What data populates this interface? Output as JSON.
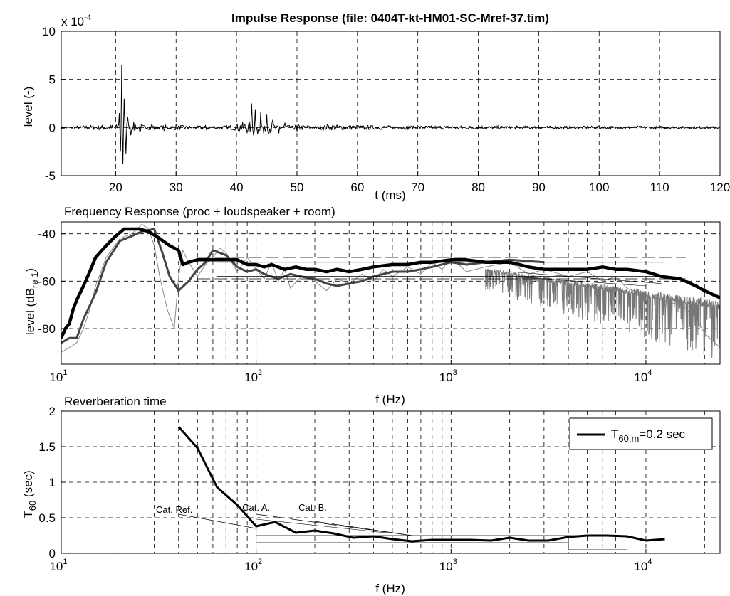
{
  "chart_data": [
    {
      "id": "impulse",
      "type": "line",
      "title": "Impulse Response (file: 0404T-kt-HM01-SC-Mref-37.tim)",
      "xlabel": "t (ms)",
      "ylabel": "level (-)",
      "y_multiplier": "x 10",
      "y_multiplier_exp": "-4",
      "xlim": [
        11,
        120
      ],
      "ylim": [
        -5,
        10
      ],
      "xticks": [
        20,
        30,
        40,
        50,
        60,
        70,
        80,
        90,
        100,
        110,
        120
      ],
      "yticks": [
        -5,
        0,
        5,
        10
      ],
      "grid": true,
      "series": [
        {
          "color": "#000000",
          "noise_floor": 0.12,
          "x": [
            11,
            20.4,
            20.6,
            20.8,
            21.0,
            21.2,
            21.4,
            21.7,
            22.0,
            22.5,
            23,
            24,
            26,
            28,
            30,
            35,
            40,
            42.5,
            42.8,
            43.1,
            43.5,
            44,
            44.5,
            45,
            46,
            47,
            48,
            50,
            55,
            60,
            70,
            80,
            90,
            100,
            110,
            120
          ],
          "y": [
            0,
            0.3,
            1.5,
            -2.5,
            6.5,
            -3.8,
            3.0,
            -2.7,
            1.1,
            -0.8,
            0.6,
            -0.5,
            0.4,
            -0.3,
            0.3,
            -0.2,
            0.3,
            2.5,
            -0.8,
            1.9,
            -0.7,
            1.6,
            -0.6,
            1.4,
            0.8,
            -0.6,
            0.5,
            -0.4,
            0.3,
            0.2,
            0.1,
            0.1,
            0.05,
            0.05,
            0.03,
            0
          ]
        }
      ]
    },
    {
      "id": "frequency",
      "type": "line",
      "title": "Frequency Response (proc + loudspeaker + room)",
      "xlabel": "f (Hz)",
      "ylabel": "level (dB",
      "ylabel_sub": "re 1",
      "ylabel_close": ")",
      "xscale": "log",
      "xlim": [
        10,
        24000
      ],
      "ylim": [
        -95,
        -35
      ],
      "xtick_base": "10",
      "xticks": [
        {
          "value": 10,
          "exp": "1"
        },
        {
          "value": 100,
          "exp": "2"
        },
        {
          "value": 1000,
          "exp": "3"
        },
        {
          "value": 10000,
          "exp": "4"
        }
      ],
      "yticks": [
        -40,
        -60,
        -80
      ],
      "grid": true,
      "series": [
        {
          "color": "#888888",
          "width": 1,
          "x": [
            10,
            11,
            12,
            13,
            14,
            15,
            17,
            20,
            23,
            26,
            28,
            30,
            32,
            35,
            38,
            40,
            42,
            45,
            50,
            55,
            60,
            65,
            70,
            80,
            90,
            100,
            110,
            120,
            130,
            140,
            150,
            170,
            200,
            230,
            260,
            300,
            350,
            400,
            450,
            500,
            600,
            700,
            800,
            900,
            1000,
            1200,
            1500,
            2000,
            2500,
            3000,
            4000,
            5000,
            6000,
            7000,
            8000,
            10000,
            12000,
            15000,
            18000,
            20000,
            24000
          ],
          "y": [
            -90,
            -88,
            -86,
            -80,
            -72,
            -62,
            -50,
            -42,
            -40,
            -36,
            -38,
            -45,
            -58,
            -72,
            -80,
            -58,
            -47,
            -52,
            -58,
            -53,
            -50,
            -46,
            -48,
            -56,
            -50,
            -55,
            -59,
            -52,
            -60,
            -55,
            -63,
            -58,
            -60,
            -64,
            -59,
            -61,
            -57,
            -60,
            -55,
            -58,
            -54,
            -57,
            -52,
            -55,
            -50,
            -56,
            -54,
            -52,
            -57,
            -55,
            -58,
            -56,
            -60,
            -58,
            -63,
            -66,
            -68,
            -70,
            -75,
            -82,
            -88
          ]
        },
        {
          "color": "#777777",
          "width": 1,
          "noise": true,
          "x": [
            1500,
            24000
          ],
          "y_center": [
            -56,
            -72
          ],
          "y_spread": [
            8,
            22
          ]
        },
        {
          "color": "#444444",
          "width": 3,
          "x": [
            10,
            11,
            12,
            13,
            15,
            17,
            20,
            23,
            26,
            30,
            33,
            36,
            40,
            45,
            50,
            55,
            60,
            70,
            80,
            90,
            100,
            110,
            130,
            150,
            170,
            200,
            230,
            260,
            300,
            350,
            400,
            500,
            600,
            700,
            800,
            1000,
            1200,
            1500,
            2000,
            3000
          ],
          "y": [
            -86,
            -84,
            -84,
            -76,
            -65,
            -52,
            -43,
            -41,
            -39,
            -38,
            -48,
            -58,
            -64,
            -60,
            -55,
            -52,
            -47,
            -49,
            -54,
            -56,
            -55,
            -57,
            -59,
            -57,
            -58,
            -59,
            -61,
            -62,
            -61,
            -60,
            -58,
            -56,
            -56,
            -55,
            -54,
            -52,
            -53,
            -52,
            -51,
            -52
          ]
        },
        {
          "color": "#000000",
          "width": 4.5,
          "x": [
            10,
            10.5,
            11,
            11.5,
            12,
            13,
            14,
            15,
            17,
            19,
            21,
            23,
            25,
            28,
            32,
            36,
            40,
            42,
            45,
            50,
            60,
            70,
            80,
            90,
            100,
            110,
            120,
            140,
            160,
            180,
            200,
            230,
            260,
            300,
            350,
            400,
            500,
            600,
            700,
            800,
            1000,
            1200,
            1500,
            2000,
            2500,
            3000,
            4000,
            5000,
            6000,
            7000,
            8000,
            10000,
            12000,
            15000,
            18000,
            20000,
            24000
          ],
          "y": [
            -84,
            -80,
            -78,
            -72,
            -68,
            -62,
            -56,
            -50,
            -45,
            -41,
            -38,
            -38,
            -38,
            -39,
            -42,
            -45,
            -47,
            -53,
            -52,
            -51,
            -51,
            -51,
            -51,
            -53,
            -53,
            -54,
            -53,
            -55,
            -54,
            -55,
            -55,
            -56,
            -55,
            -56,
            -55,
            -54,
            -53,
            -53,
            -52,
            -52,
            -51,
            -51,
            -52,
            -52,
            -54,
            -55,
            -55,
            -55,
            -54,
            -55,
            -55,
            -56,
            -58,
            -59,
            -62,
            -64,
            -67
          ]
        }
      ],
      "reference_lines": [
        {
          "style": "dash",
          "width": 0.8,
          "x": [
            50,
            16000
          ],
          "y": [
            -50,
            -50
          ]
        },
        {
          "style": "dash",
          "width": 0.8,
          "x": [
            50,
            16000
          ],
          "y": [
            -59,
            -59
          ]
        },
        {
          "style": "solid",
          "width": 0.8,
          "x": [
            63,
            12500
          ],
          "y": [
            -52,
            -52
          ]
        },
        {
          "style": "solid",
          "width": 0.8,
          "x": [
            63,
            12500
          ],
          "y": [
            -58,
            -58
          ]
        },
        {
          "style": "solid",
          "width": 0.6,
          "x": [
            2000,
            12000
          ],
          "y": [
            -56,
            -61
          ]
        },
        {
          "style": "solid",
          "width": 0.6,
          "x": [
            2000,
            10000
          ],
          "y": [
            -58,
            -62
          ]
        }
      ]
    },
    {
      "id": "reverb",
      "type": "line",
      "title": "Reverberation time",
      "xlabel": "f (Hz)",
      "ylabel": "T",
      "ylabel_sub": "60",
      "ylabel_tail": " (sec)",
      "xscale": "log",
      "xlim": [
        10,
        24000
      ],
      "ylim": [
        0,
        2
      ],
      "xtick_base": "10",
      "xticks": [
        {
          "value": 10,
          "exp": "1"
        },
        {
          "value": 100,
          "exp": "2"
        },
        {
          "value": 1000,
          "exp": "3"
        },
        {
          "value": 10000,
          "exp": "4"
        }
      ],
      "yticks": [
        0,
        0.5,
        1,
        1.5,
        2
      ],
      "grid": true,
      "legend": {
        "position": "top-right",
        "label": "T",
        "label_sub": "60,m",
        "label_tail": "=0.2 sec"
      },
      "series": [
        {
          "color": "#000000",
          "width": 3,
          "x": [
            40,
            50,
            63,
            80,
            100,
            125,
            160,
            200,
            250,
            315,
            400,
            500,
            630,
            800,
            1000,
            1250,
            1600,
            2000,
            2500,
            3150,
            4000,
            5000,
            6300,
            8000,
            10000,
            12500
          ],
          "y": [
            1.78,
            1.48,
            0.93,
            0.68,
            0.38,
            0.44,
            0.29,
            0.32,
            0.28,
            0.22,
            0.24,
            0.2,
            0.17,
            0.19,
            0.19,
            0.19,
            0.18,
            0.22,
            0.18,
            0.18,
            0.23,
            0.25,
            0.25,
            0.24,
            0.18,
            0.2
          ]
        }
      ],
      "reference_lines": [
        {
          "style": "solid",
          "width": 0.8,
          "x": [
            40,
            100
          ],
          "y": [
            0.55,
            0.35
          ]
        },
        {
          "style": "solid",
          "width": 0.8,
          "x": [
            100,
            100
          ],
          "y": [
            0.35,
            0.15
          ]
        },
        {
          "style": "solid",
          "width": 0.8,
          "x": [
            100,
            4000
          ],
          "y": [
            0.15,
            0.15
          ]
        },
        {
          "style": "solid",
          "width": 0.8,
          "x": [
            100,
            4000
          ],
          "y": [
            0.25,
            0.25
          ]
        },
        {
          "style": "solid",
          "width": 0.8,
          "x": [
            4000,
            8000
          ],
          "y": [
            0.25,
            0.25
          ]
        },
        {
          "style": "solid",
          "width": 0.8,
          "x": [
            4000,
            8000
          ],
          "y": [
            0.05,
            0.05
          ]
        },
        {
          "style": "solid",
          "width": 0.8,
          "x": [
            4000,
            4000
          ],
          "y": [
            0.05,
            0.25
          ]
        },
        {
          "style": "solid",
          "width": 0.8,
          "x": [
            8000,
            8000
          ],
          "y": [
            0.05,
            0.25
          ]
        },
        {
          "style": "dash",
          "width": 0.8,
          "x": [
            100,
            630
          ],
          "y": [
            0.55,
            0.25
          ]
        },
        {
          "style": "dash",
          "width": 0.8,
          "x": [
            200,
            630
          ],
          "y": [
            0.45,
            0.25
          ]
        },
        {
          "style": "solid",
          "width": 0.6,
          "x": [
            100,
            500
          ],
          "y": [
            0.48,
            0.28
          ]
        }
      ],
      "annotations": [
        {
          "text": "Cat. Ref.",
          "x": 38,
          "y": 0.57
        },
        {
          "text": "Cat. A.",
          "x": 100,
          "y": 0.6
        },
        {
          "text": "Cat. B.",
          "x": 195,
          "y": 0.6
        }
      ]
    }
  ]
}
